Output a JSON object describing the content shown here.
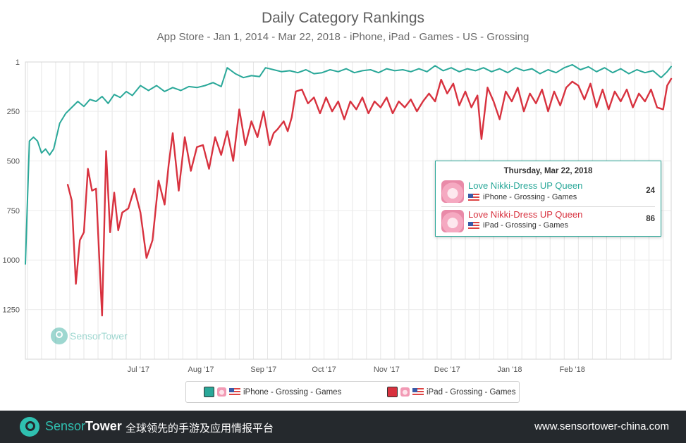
{
  "header": {
    "title": "Daily Category Rankings",
    "subtitle": "App Store - Jan 1, 2014 - Mar 22, 2018 - iPhone, iPad - Games - US - Grossing"
  },
  "colors": {
    "iphone": "#2aa899",
    "ipad": "#d8323f",
    "grid": "#e3e3e3",
    "footer_bg": "#25292d",
    "brand": "#2fc0b0"
  },
  "chart_data": {
    "type": "line",
    "title": "Daily Category Rankings",
    "subtitle": "App Store - Jan 1, 2014 - Mar 22, 2018 - iPhone, iPad - Games - US - Grossing",
    "y_axis": {
      "reversed": true,
      "ylim": [
        1,
        1500
      ],
      "ticks": [
        "1",
        "250",
        "500",
        "750",
        "1000",
        "1250"
      ]
    },
    "x_axis": {
      "xlim": [
        "2017-05-06",
        "2018-03-22"
      ],
      "ticks": [
        {
          "date": "2017-07-01",
          "label": "Jul '17"
        },
        {
          "date": "2017-08-01",
          "label": "Aug '17"
        },
        {
          "date": "2017-09-01",
          "label": "Sep '17"
        },
        {
          "date": "2017-10-01",
          "label": "Oct '17"
        },
        {
          "date": "2017-11-01",
          "label": "Nov '17"
        },
        {
          "date": "2017-12-01",
          "label": "Dec '17"
        },
        {
          "date": "2018-01-01",
          "label": "Jan '18"
        },
        {
          "date": "2018-02-01",
          "label": "Feb '18"
        }
      ]
    },
    "grid": true,
    "series": [
      {
        "name": "iPhone - Grossing - Games",
        "color": "#2aa899",
        "points": [
          [
            "2017-05-06",
            1020
          ],
          [
            "2017-05-08",
            400
          ],
          [
            "2017-05-10",
            380
          ],
          [
            "2017-05-12",
            400
          ],
          [
            "2017-05-14",
            460
          ],
          [
            "2017-05-16",
            440
          ],
          [
            "2017-05-18",
            470
          ],
          [
            "2017-05-20",
            440
          ],
          [
            "2017-05-23",
            310
          ],
          [
            "2017-05-26",
            260
          ],
          [
            "2017-05-29",
            230
          ],
          [
            "2017-06-01",
            200
          ],
          [
            "2017-06-04",
            225
          ],
          [
            "2017-06-07",
            190
          ],
          [
            "2017-06-10",
            200
          ],
          [
            "2017-06-13",
            175
          ],
          [
            "2017-06-16",
            210
          ],
          [
            "2017-06-19",
            165
          ],
          [
            "2017-06-22",
            180
          ],
          [
            "2017-06-25",
            150
          ],
          [
            "2017-06-28",
            170
          ],
          [
            "2017-07-02",
            120
          ],
          [
            "2017-07-06",
            145
          ],
          [
            "2017-07-10",
            120
          ],
          [
            "2017-07-14",
            150
          ],
          [
            "2017-07-18",
            130
          ],
          [
            "2017-07-22",
            145
          ],
          [
            "2017-07-26",
            125
          ],
          [
            "2017-07-30",
            130
          ],
          [
            "2017-08-03",
            120
          ],
          [
            "2017-08-07",
            105
          ],
          [
            "2017-08-11",
            125
          ],
          [
            "2017-08-14",
            30
          ],
          [
            "2017-08-18",
            60
          ],
          [
            "2017-08-22",
            80
          ],
          [
            "2017-08-26",
            70
          ],
          [
            "2017-08-30",
            75
          ],
          [
            "2017-09-02",
            30
          ],
          [
            "2017-09-06",
            40
          ],
          [
            "2017-09-10",
            50
          ],
          [
            "2017-09-14",
            45
          ],
          [
            "2017-09-18",
            55
          ],
          [
            "2017-09-22",
            40
          ],
          [
            "2017-09-26",
            60
          ],
          [
            "2017-09-30",
            55
          ],
          [
            "2017-10-04",
            40
          ],
          [
            "2017-10-08",
            50
          ],
          [
            "2017-10-12",
            35
          ],
          [
            "2017-10-16",
            55
          ],
          [
            "2017-10-20",
            45
          ],
          [
            "2017-10-24",
            40
          ],
          [
            "2017-10-28",
            55
          ],
          [
            "2017-11-01",
            35
          ],
          [
            "2017-11-05",
            45
          ],
          [
            "2017-11-09",
            40
          ],
          [
            "2017-11-13",
            50
          ],
          [
            "2017-11-17",
            35
          ],
          [
            "2017-11-21",
            50
          ],
          [
            "2017-11-25",
            20
          ],
          [
            "2017-11-29",
            45
          ],
          [
            "2017-12-03",
            30
          ],
          [
            "2017-12-07",
            50
          ],
          [
            "2017-12-11",
            35
          ],
          [
            "2017-12-15",
            45
          ],
          [
            "2017-12-19",
            30
          ],
          [
            "2017-12-23",
            50
          ],
          [
            "2017-12-27",
            35
          ],
          [
            "2017-12-31",
            55
          ],
          [
            "2018-01-04",
            30
          ],
          [
            "2018-01-08",
            45
          ],
          [
            "2018-01-12",
            35
          ],
          [
            "2018-01-16",
            60
          ],
          [
            "2018-01-20",
            40
          ],
          [
            "2018-01-24",
            55
          ],
          [
            "2018-01-28",
            30
          ],
          [
            "2018-02-01",
            15
          ],
          [
            "2018-02-05",
            40
          ],
          [
            "2018-02-09",
            25
          ],
          [
            "2018-02-13",
            50
          ],
          [
            "2018-02-17",
            30
          ],
          [
            "2018-02-21",
            55
          ],
          [
            "2018-02-25",
            35
          ],
          [
            "2018-03-01",
            60
          ],
          [
            "2018-03-05",
            40
          ],
          [
            "2018-03-09",
            55
          ],
          [
            "2018-03-13",
            45
          ],
          [
            "2018-03-17",
            80
          ],
          [
            "2018-03-20",
            50
          ],
          [
            "2018-03-22",
            24
          ]
        ]
      },
      {
        "name": "iPad - Grossing - Games",
        "color": "#d8323f",
        "points": [
          [
            "2017-05-27",
            620
          ],
          [
            "2017-05-29",
            700
          ],
          [
            "2017-05-31",
            1120
          ],
          [
            "2017-06-02",
            900
          ],
          [
            "2017-06-04",
            860
          ],
          [
            "2017-06-06",
            540
          ],
          [
            "2017-06-08",
            650
          ],
          [
            "2017-06-10",
            640
          ],
          [
            "2017-06-12",
            1070
          ],
          [
            "2017-06-13",
            1280
          ],
          [
            "2017-06-15",
            450
          ],
          [
            "2017-06-17",
            860
          ],
          [
            "2017-06-19",
            660
          ],
          [
            "2017-06-21",
            850
          ],
          [
            "2017-06-23",
            760
          ],
          [
            "2017-06-26",
            740
          ],
          [
            "2017-06-29",
            640
          ],
          [
            "2017-07-02",
            760
          ],
          [
            "2017-07-05",
            990
          ],
          [
            "2017-07-08",
            900
          ],
          [
            "2017-07-11",
            600
          ],
          [
            "2017-07-14",
            720
          ],
          [
            "2017-07-16",
            520
          ],
          [
            "2017-07-18",
            360
          ],
          [
            "2017-07-21",
            650
          ],
          [
            "2017-07-24",
            380
          ],
          [
            "2017-07-27",
            550
          ],
          [
            "2017-07-30",
            430
          ],
          [
            "2017-08-02",
            420
          ],
          [
            "2017-08-05",
            540
          ],
          [
            "2017-08-08",
            380
          ],
          [
            "2017-08-11",
            470
          ],
          [
            "2017-08-14",
            350
          ],
          [
            "2017-08-17",
            500
          ],
          [
            "2017-08-20",
            240
          ],
          [
            "2017-08-23",
            420
          ],
          [
            "2017-08-26",
            300
          ],
          [
            "2017-08-29",
            380
          ],
          [
            "2017-09-01",
            250
          ],
          [
            "2017-09-04",
            420
          ],
          [
            "2017-09-06",
            360
          ],
          [
            "2017-09-08",
            340
          ],
          [
            "2017-09-11",
            300
          ],
          [
            "2017-09-13",
            350
          ],
          [
            "2017-09-15",
            280
          ],
          [
            "2017-09-17",
            150
          ],
          [
            "2017-09-20",
            140
          ],
          [
            "2017-09-23",
            210
          ],
          [
            "2017-09-26",
            180
          ],
          [
            "2017-09-29",
            260
          ],
          [
            "2017-10-02",
            180
          ],
          [
            "2017-10-05",
            250
          ],
          [
            "2017-10-08",
            200
          ],
          [
            "2017-10-11",
            290
          ],
          [
            "2017-10-14",
            200
          ],
          [
            "2017-10-17",
            240
          ],
          [
            "2017-10-20",
            180
          ],
          [
            "2017-10-23",
            260
          ],
          [
            "2017-10-26",
            200
          ],
          [
            "2017-10-29",
            230
          ],
          [
            "2017-11-01",
            180
          ],
          [
            "2017-11-04",
            260
          ],
          [
            "2017-11-07",
            200
          ],
          [
            "2017-11-10",
            230
          ],
          [
            "2017-11-13",
            190
          ],
          [
            "2017-11-16",
            250
          ],
          [
            "2017-11-19",
            200
          ],
          [
            "2017-11-22",
            160
          ],
          [
            "2017-11-25",
            200
          ],
          [
            "2017-11-28",
            90
          ],
          [
            "2017-12-01",
            160
          ],
          [
            "2017-12-04",
            110
          ],
          [
            "2017-12-07",
            220
          ],
          [
            "2017-12-10",
            150
          ],
          [
            "2017-12-13",
            230
          ],
          [
            "2017-12-16",
            170
          ],
          [
            "2017-12-18",
            390
          ],
          [
            "2017-12-21",
            130
          ],
          [
            "2017-12-24",
            200
          ],
          [
            "2017-12-27",
            290
          ],
          [
            "2017-12-30",
            150
          ],
          [
            "2018-01-02",
            200
          ],
          [
            "2018-01-05",
            130
          ],
          [
            "2018-01-08",
            250
          ],
          [
            "2018-01-11",
            160
          ],
          [
            "2018-01-14",
            210
          ],
          [
            "2018-01-17",
            140
          ],
          [
            "2018-01-20",
            250
          ],
          [
            "2018-01-23",
            150
          ],
          [
            "2018-01-26",
            220
          ],
          [
            "2018-01-29",
            130
          ],
          [
            "2018-02-01",
            100
          ],
          [
            "2018-02-04",
            120
          ],
          [
            "2018-02-07",
            190
          ],
          [
            "2018-02-10",
            110
          ],
          [
            "2018-02-13",
            230
          ],
          [
            "2018-02-16",
            140
          ],
          [
            "2018-02-19",
            240
          ],
          [
            "2018-02-22",
            150
          ],
          [
            "2018-02-25",
            200
          ],
          [
            "2018-02-28",
            140
          ],
          [
            "2018-03-03",
            230
          ],
          [
            "2018-03-06",
            160
          ],
          [
            "2018-03-09",
            200
          ],
          [
            "2018-03-12",
            140
          ],
          [
            "2018-03-15",
            230
          ],
          [
            "2018-03-18",
            240
          ],
          [
            "2018-03-20",
            120
          ],
          [
            "2018-03-22",
            86
          ]
        ]
      }
    ]
  },
  "tooltip": {
    "date": "Thursday, Mar 22, 2018",
    "rows": [
      {
        "app": "Love Nikki-Dress UP Queen",
        "label": "iPhone - Grossing - Games",
        "value": "24"
      },
      {
        "app": "Love Nikki-Dress UP Queen",
        "label": "iPad - Grossing - Games",
        "value": "86"
      }
    ]
  },
  "legend": {
    "items": [
      {
        "label": "iPhone - Grossing - Games"
      },
      {
        "label": "iPad - Grossing - Games"
      }
    ]
  },
  "watermark": {
    "brand_a": "Sensor",
    "brand_b": "Tower"
  },
  "footer": {
    "brand_a": "Sensor",
    "brand_b": "Tower",
    "slogan": "全球领先的手游及应用情报平台",
    "url": "www.sensortower-china.com"
  }
}
